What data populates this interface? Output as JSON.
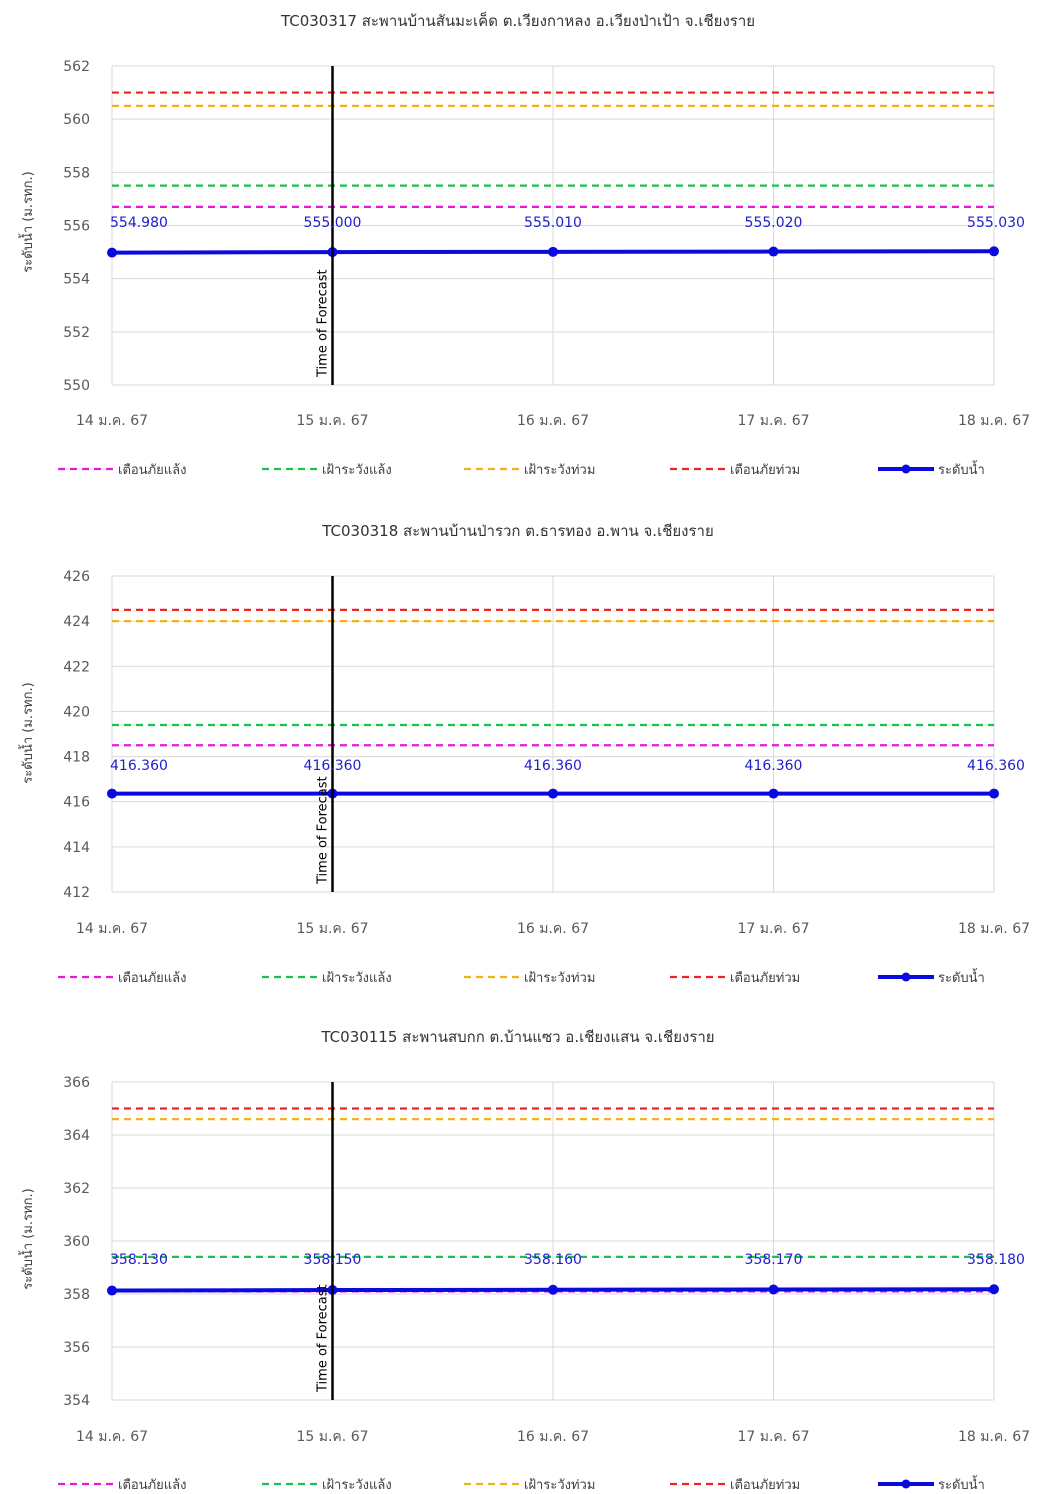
{
  "colors": {
    "drought_warning": "#e619d6",
    "drought_watch": "#1fbf4f",
    "flood_watch": "#f0b11e",
    "flood_warning": "#e82424",
    "water_level": "#0a0ae0",
    "forecast_line": "#000000",
    "grid": "#d9d9d9"
  },
  "legend_labels": [
    "เตือนภัยแล้ง",
    "เฝ้าระวังแล้ง",
    "เฝ้าระวังท่วม",
    "เตือนภัยท่วม",
    "ระดับน้ำ"
  ],
  "chart_data": [
    {
      "type": "line",
      "title": "TC030317 สะพานบ้านสันมะเค็ด ต.เวียงกาหลง อ.เวียงป่าเป้า จ.เชียงราย",
      "ylabel": "ระดับน้ำ (ม.รทก.)",
      "categories": [
        "14 ม.ค. 67",
        "15 ม.ค. 67",
        "16 ม.ค. 67",
        "17 ม.ค. 67",
        "18 ม.ค. 67"
      ],
      "ylim": [
        550,
        562
      ],
      "yticks": [
        "550",
        "552",
        "554",
        "556",
        "558",
        "560",
        "562"
      ],
      "thresholds": {
        "drought_warning": 556.7,
        "drought_watch": 557.5,
        "flood_watch": 560.5,
        "flood_warning": 561.0
      },
      "water_level": [
        554.98,
        555.0,
        555.01,
        555.02,
        555.03
      ],
      "data_labels": [
        "554.980",
        "555.000",
        "555.010",
        "555.020",
        "555.030"
      ],
      "forecast_index": 1,
      "forecast_label": "Time of Forecast"
    },
    {
      "type": "line",
      "title": "TC030318 สะพานบ้านป่ารวก ต.ธารทอง อ.พาน จ.เชียงราย",
      "ylabel": "ระดับน้ำ (ม.รทก.)",
      "categories": [
        "14 ม.ค. 67",
        "15 ม.ค. 67",
        "16 ม.ค. 67",
        "17 ม.ค. 67",
        "18 ม.ค. 67"
      ],
      "ylim": [
        412,
        426
      ],
      "yticks": [
        "412",
        "414",
        "416",
        "418",
        "420",
        "422",
        "424",
        "426"
      ],
      "thresholds": {
        "drought_warning": 418.5,
        "drought_watch": 419.4,
        "flood_watch": 424.0,
        "flood_warning": 424.5
      },
      "water_level": [
        416.36,
        416.36,
        416.36,
        416.36,
        416.36
      ],
      "data_labels": [
        "416.360",
        "416.360",
        "416.360",
        "416.360",
        "416.360"
      ],
      "forecast_index": 1,
      "forecast_label": "Time of Forecast"
    },
    {
      "type": "line",
      "title": "TC030115 สะพานสบกก ต.บ้านแซว อ.เชียงแสน จ.เชียงราย",
      "ylabel": "ระดับน้ำ (ม.รทก.)",
      "categories": [
        "14 ม.ค. 67",
        "15 ม.ค. 67",
        "16 ม.ค. 67",
        "17 ม.ค. 67",
        "18 ม.ค. 67"
      ],
      "ylim": [
        354,
        366
      ],
      "yticks": [
        "354",
        "356",
        "358",
        "360",
        "362",
        "364",
        "366"
      ],
      "thresholds": {
        "drought_warning": 358.1,
        "drought_watch": 359.4,
        "flood_watch": 364.6,
        "flood_warning": 365.0
      },
      "water_level": [
        358.13,
        358.15,
        358.16,
        358.17,
        358.18
      ],
      "data_labels": [
        "358.130",
        "358.150",
        "358.160",
        "358.170",
        "358.180"
      ],
      "forecast_index": 1,
      "forecast_label": "Time of Forecast"
    }
  ]
}
